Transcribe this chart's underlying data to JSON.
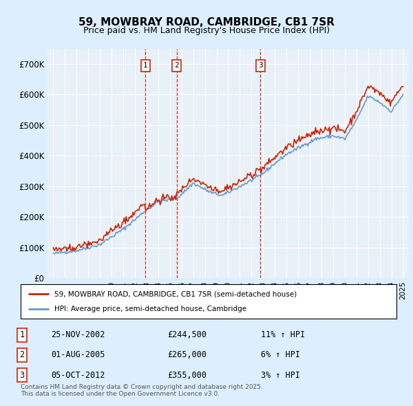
{
  "title": "59, MOWBRAY ROAD, CAMBRIDGE, CB1 7SR",
  "subtitle": "Price paid vs. HM Land Registry's House Price Index (HPI)",
  "hpi_label": "HPI: Average price, semi-detached house, Cambridge",
  "property_label": "59, MOWBRAY ROAD, CAMBRIDGE, CB1 7SR (semi-detached house)",
  "footnote": "Contains HM Land Registry data © Crown copyright and database right 2025.\nThis data is licensed under the Open Government Licence v3.0.",
  "transactions": [
    {
      "num": 1,
      "date": "25-NOV-2002",
      "price": 244500,
      "hpi_pct": "11%",
      "hpi_dir": "↑"
    },
    {
      "num": 2,
      "date": "01-AUG-2005",
      "price": 265000,
      "hpi_pct": "6%",
      "hpi_dir": "↑"
    },
    {
      "num": 3,
      "date": "05-OCT-2012",
      "price": 355000,
      "hpi_pct": "3%",
      "hpi_dir": "↑"
    }
  ],
  "transaction_dates_decimal": [
    2002.9,
    2005.58,
    2012.76
  ],
  "ylim": [
    0,
    750000
  ],
  "yticks": [
    0,
    100000,
    200000,
    300000,
    400000,
    500000,
    600000,
    700000
  ],
  "ytick_labels": [
    "£0",
    "£100K",
    "£200K",
    "£300K",
    "£400K",
    "£500K",
    "£600K",
    "£700K"
  ],
  "hpi_color": "#6699cc",
  "property_color": "#cc2200",
  "vline_color": "#cc2200",
  "bg_color": "#ddeeff",
  "plot_bg": "#e8f0f8",
  "anchors_x": [
    1995.0,
    1997.0,
    1999.0,
    2001.0,
    2002.9,
    2004.0,
    2005.58,
    2007.0,
    2008.5,
    2009.5,
    2010.5,
    2012.76,
    2014.0,
    2015.0,
    2016.5,
    2017.5,
    2019.0,
    2020.0,
    2021.0,
    2022.0,
    2023.0,
    2024.0,
    2025.0
  ],
  "anchors_y": [
    80000,
    90000,
    110000,
    160000,
    220000,
    250000,
    260000,
    310000,
    280000,
    270000,
    290000,
    335000,
    375000,
    405000,
    435000,
    455000,
    465000,
    455000,
    515000,
    595000,
    575000,
    545000,
    600000
  ]
}
